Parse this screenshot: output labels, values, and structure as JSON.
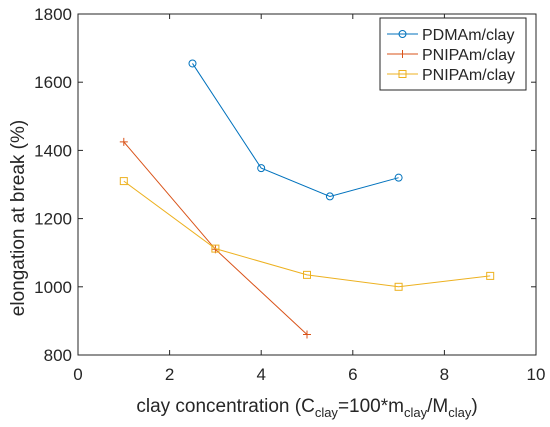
{
  "chart_data": {
    "type": "line",
    "title": "",
    "xlabel": {
      "prefix": "clay concentration (C",
      "sub1": "clay",
      "mid1": "=100*m",
      "sub2": "clay",
      "mid2": "/M",
      "sub3": "clay",
      "suffix": ")"
    },
    "ylabel": "elongation at break (%)",
    "xlim": [
      0,
      10
    ],
    "ylim": [
      800,
      1800
    ],
    "xticks": [
      0,
      2,
      4,
      6,
      8,
      10
    ],
    "yticks": [
      800,
      1000,
      1200,
      1400,
      1600,
      1800
    ],
    "xtick_labels": [
      "0",
      "2",
      "4",
      "6",
      "8",
      "10"
    ],
    "ytick_labels": [
      "800",
      "1000",
      "1200",
      "1400",
      "1600",
      "1800"
    ],
    "grid": false,
    "legend_position": "top-right",
    "series": [
      {
        "name": "PDMAm/clay",
        "color": "#0072BD",
        "marker": "circle",
        "x": [
          2.5,
          4,
          5.5,
          7
        ],
        "y": [
          1655,
          1348,
          1265,
          1320
        ]
      },
      {
        "name": "PNIPAm/clay",
        "color": "#D95319",
        "marker": "plus",
        "x": [
          1,
          3,
          5
        ],
        "y": [
          1425,
          1110,
          860
        ]
      },
      {
        "name": "PNIPAm/clay",
        "color": "#EDB120",
        "marker": "square",
        "x": [
          1,
          3,
          5,
          7,
          9
        ],
        "y": [
          1310,
          1112,
          1035,
          1000,
          1032
        ]
      }
    ]
  }
}
